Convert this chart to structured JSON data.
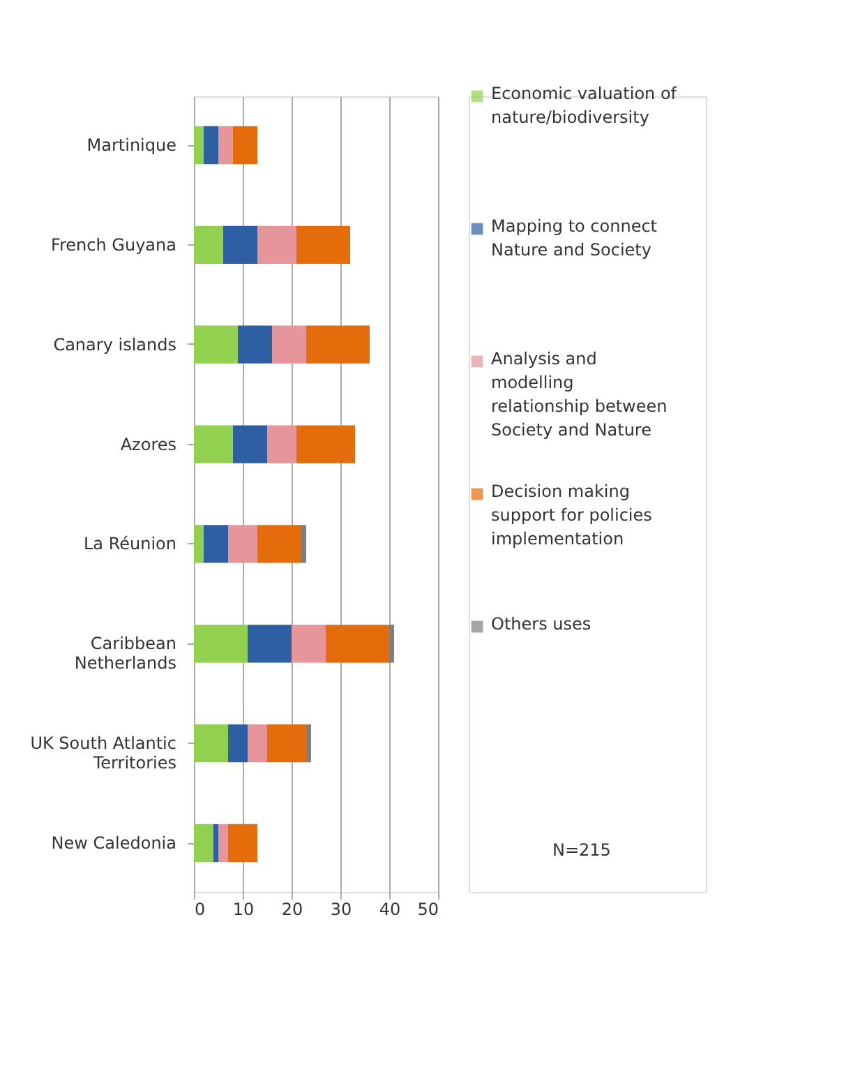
{
  "chart_data": {
    "type": "bar",
    "orientation": "horizontal",
    "stacked": true,
    "categories": [
      "Martinique",
      "French Guyana",
      "Canary islands",
      "Azores",
      "La Réunion",
      "Caribbean Netherlands",
      "UK South Atlantic Territories",
      "New Caledonia"
    ],
    "series": [
      {
        "name": "Economic valuation of nature/biodiversity",
        "color": "#92d050",
        "values": [
          2,
          6,
          9,
          8,
          2,
          11,
          7,
          4
        ]
      },
      {
        "name": "Mapping to connect Nature and Society",
        "color": "#2e5fa3",
        "values": [
          3,
          7,
          7,
          7,
          5,
          9,
          4,
          1
        ]
      },
      {
        "name": "Analysis and modelling relationship between Society and Nature",
        "color": "#e6959a",
        "values": [
          3,
          8,
          7,
          6,
          6,
          7,
          4,
          2
        ]
      },
      {
        "name": "Decision making support for policies implementation",
        "color": "#e46c0a",
        "values": [
          5,
          11,
          13,
          12,
          9,
          13,
          8,
          6
        ]
      },
      {
        "name": "Others uses",
        "color": "#7f7f7f",
        "values": [
          0,
          0,
          0,
          0,
          1,
          1,
          1,
          0
        ]
      }
    ],
    "xlim": [
      0,
      50
    ],
    "xticks": [
      0,
      10,
      20,
      30,
      40,
      50
    ],
    "grid": "x",
    "legend": "right",
    "annotations": [
      "N=215"
    ]
  }
}
